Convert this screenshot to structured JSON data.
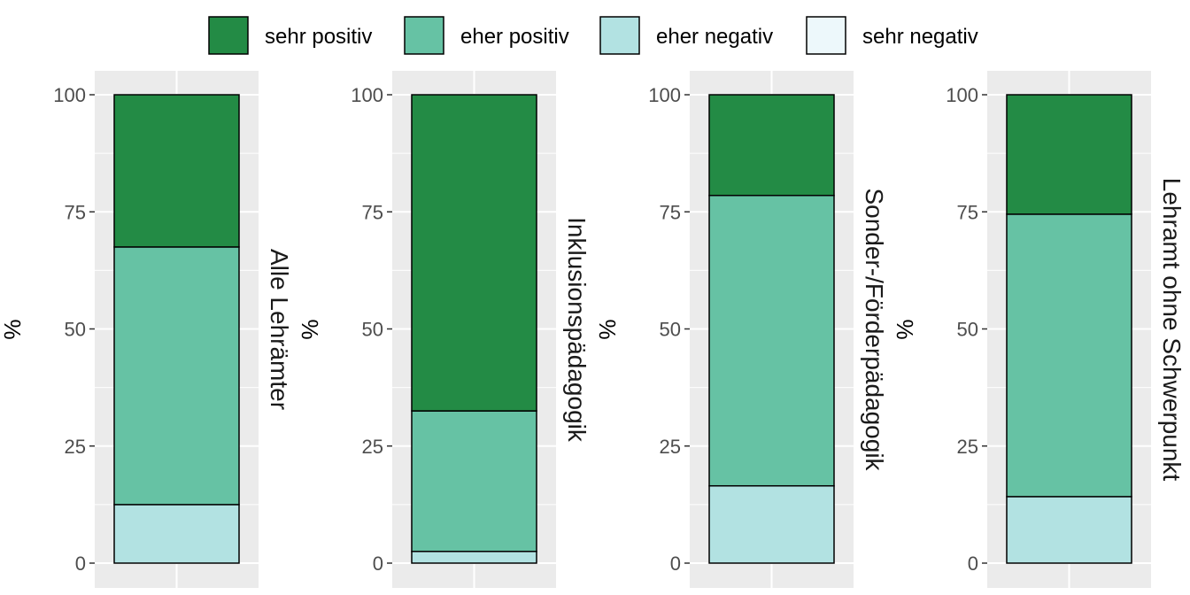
{
  "chart_data": {
    "type": "bar",
    "stacked": true,
    "ylabel": "%",
    "ylim": [
      0,
      100
    ],
    "yticks": [
      0,
      25,
      50,
      75,
      100
    ],
    "legend": {
      "position": "top",
      "entries": [
        {
          "name": "sehr positiv",
          "color": "#238b45"
        },
        {
          "name": "eher positiv",
          "color": "#66c2a4"
        },
        {
          "name": "eher negativ",
          "color": "#b2e2e2"
        },
        {
          "name": "sehr negativ",
          "color": "#edf8fb"
        }
      ]
    },
    "panels": [
      {
        "label": "Alle Lehrämter",
        "values": {
          "sehr positiv": 32.5,
          "eher positiv": 55,
          "eher negativ": 12.5,
          "sehr negativ": 0
        }
      },
      {
        "label": "Inklusionspädagogik",
        "values": {
          "sehr positiv": 67.5,
          "eher positiv": 30,
          "eher negativ": 2.5,
          "sehr negativ": 0
        }
      },
      {
        "label": "Sonder-/Förderpädagogik",
        "values": {
          "sehr positiv": 21.5,
          "eher positiv": 62,
          "eher negativ": 16.5,
          "sehr negativ": 0
        }
      },
      {
        "label": "Lehramt ohne Schwerpunkt",
        "values": {
          "sehr positiv": 25.5,
          "eher positiv": 60.3,
          "eher negativ": 14.2,
          "sehr negativ": 0
        }
      }
    ]
  }
}
